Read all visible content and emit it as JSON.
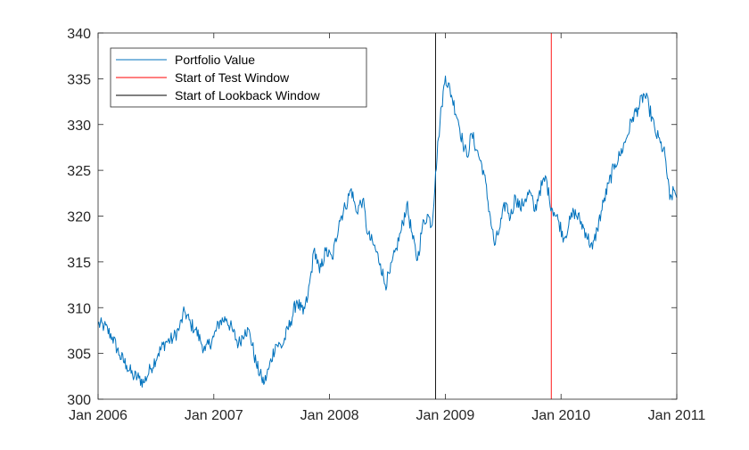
{
  "chart_data": {
    "type": "line",
    "title": "",
    "xlabel": "",
    "ylabel": "",
    "xlim": [
      "2006-01-01",
      "2011-01-01"
    ],
    "ylim": [
      300,
      340
    ],
    "x_ticks": [
      "Jan 2006",
      "Jan 2007",
      "Jan 2008",
      "Jan 2009",
      "Jan 2010",
      "Jan 2011"
    ],
    "y_ticks": [
      300,
      305,
      310,
      315,
      320,
      325,
      330,
      335,
      340
    ],
    "grid": false,
    "legend_position": "top-left",
    "legend": [
      "Portfolio Value",
      "Start of Test Window",
      "Start of Lookback Window"
    ],
    "series": [
      {
        "name": "Portfolio Value",
        "color": "#0072BD",
        "points": [
          [
            "2006-01-01",
            308.2
          ],
          [
            "2006-01-20",
            308.0
          ],
          [
            "2006-02-15",
            306.8
          ],
          [
            "2006-03-10",
            304.8
          ],
          [
            "2006-04-01",
            303.7
          ],
          [
            "2006-04-20",
            302.6
          ],
          [
            "2006-05-10",
            302.3
          ],
          [
            "2006-05-25",
            301.8
          ],
          [
            "2006-06-15",
            303.3
          ],
          [
            "2006-07-10",
            305.0
          ],
          [
            "2006-08-01",
            306.2
          ],
          [
            "2006-08-25",
            306.6
          ],
          [
            "2006-09-15",
            307.8
          ],
          [
            "2006-10-01",
            309.6
          ],
          [
            "2006-10-20",
            308.2
          ],
          [
            "2006-11-05",
            307.6
          ],
          [
            "2006-11-20",
            306.4
          ],
          [
            "2006-12-05",
            305.3
          ],
          [
            "2007-01-01",
            306.8
          ],
          [
            "2007-01-20",
            308.5
          ],
          [
            "2007-02-10",
            308.8
          ],
          [
            "2007-03-01",
            307.5
          ],
          [
            "2007-03-20",
            306.0
          ],
          [
            "2007-04-10",
            307.6
          ],
          [
            "2007-04-25",
            307.2
          ],
          [
            "2007-05-15",
            303.8
          ],
          [
            "2007-06-01",
            302.3
          ],
          [
            "2007-06-10",
            301.8
          ],
          [
            "2007-06-25",
            303.5
          ],
          [
            "2007-07-15",
            306.0
          ],
          [
            "2007-08-05",
            305.8
          ],
          [
            "2007-09-01",
            308.5
          ],
          [
            "2007-09-20",
            310.8
          ],
          [
            "2007-10-10",
            309.3
          ],
          [
            "2007-10-25",
            311.2
          ],
          [
            "2007-11-15",
            316.5
          ],
          [
            "2007-12-01",
            313.8
          ],
          [
            "2007-12-20",
            316.2
          ],
          [
            "2008-01-10",
            315.3
          ],
          [
            "2008-02-01",
            319.5
          ],
          [
            "2008-02-20",
            321.0
          ],
          [
            "2008-03-10",
            323.0
          ],
          [
            "2008-03-25",
            320.5
          ],
          [
            "2008-04-15",
            321.8
          ],
          [
            "2008-05-01",
            318.0
          ],
          [
            "2008-05-20",
            316.8
          ],
          [
            "2008-06-10",
            314.8
          ],
          [
            "2008-06-25",
            312.5
          ],
          [
            "2008-07-10",
            313.8
          ],
          [
            "2008-07-30",
            316.5
          ],
          [
            "2008-08-15",
            318.5
          ],
          [
            "2008-09-01",
            321.3
          ],
          [
            "2008-09-20",
            317.5
          ],
          [
            "2008-10-05",
            315.2
          ],
          [
            "2008-10-20",
            318.8
          ],
          [
            "2008-11-05",
            320.2
          ],
          [
            "2008-11-20",
            319.0
          ],
          [
            "2008-12-01",
            324.8
          ],
          [
            "2008-12-10",
            328.5
          ],
          [
            "2008-12-20",
            332.0
          ],
          [
            "2009-01-01",
            335.3
          ],
          [
            "2009-01-20",
            333.2
          ],
          [
            "2009-02-10",
            330.5
          ],
          [
            "2009-02-25",
            328.0
          ],
          [
            "2009-03-10",
            326.5
          ],
          [
            "2009-03-25",
            329.0
          ],
          [
            "2009-04-10",
            327.2
          ],
          [
            "2009-05-01",
            325.0
          ],
          [
            "2009-05-20",
            320.5
          ],
          [
            "2009-06-05",
            316.8
          ],
          [
            "2009-06-20",
            318.5
          ],
          [
            "2009-07-10",
            321.5
          ],
          [
            "2009-07-25",
            319.8
          ],
          [
            "2009-08-10",
            322.2
          ],
          [
            "2009-08-25",
            320.8
          ],
          [
            "2009-09-10",
            321.9
          ],
          [
            "2009-09-25",
            322.6
          ],
          [
            "2009-10-10",
            320.5
          ],
          [
            "2009-10-25",
            322.8
          ],
          [
            "2009-11-15",
            324.2
          ],
          [
            "2009-11-25",
            321.8
          ],
          [
            "2009-12-10",
            320.4
          ],
          [
            "2009-12-25",
            319.4
          ],
          [
            "2010-01-10",
            317.6
          ],
          [
            "2010-01-25",
            319.0
          ],
          [
            "2010-02-10",
            320.5
          ],
          [
            "2010-03-01",
            319.6
          ],
          [
            "2010-03-20",
            318.2
          ],
          [
            "2010-04-10",
            316.4
          ],
          [
            "2010-04-25",
            318.6
          ],
          [
            "2010-05-15",
            321.5
          ],
          [
            "2010-06-01",
            323.6
          ],
          [
            "2010-06-20",
            325.7
          ],
          [
            "2010-07-05",
            326.6
          ],
          [
            "2010-07-25",
            328.4
          ],
          [
            "2010-08-15",
            330.8
          ],
          [
            "2010-09-01",
            331.8
          ],
          [
            "2010-09-20",
            333.3
          ],
          [
            "2010-10-05",
            332.0
          ],
          [
            "2010-10-25",
            329.2
          ],
          [
            "2010-11-10",
            328.0
          ],
          [
            "2010-11-25",
            326.6
          ],
          [
            "2010-12-10",
            321.8
          ],
          [
            "2010-12-25",
            322.8
          ],
          [
            "2011-01-01",
            322.0
          ]
        ]
      },
      {
        "name": "Start of Test Window",
        "type": "vline",
        "color": "#FF0000",
        "x": "2009-12-01"
      },
      {
        "name": "Start of Lookback Window",
        "type": "vline",
        "color": "#000000",
        "x": "2008-12-01"
      }
    ]
  }
}
